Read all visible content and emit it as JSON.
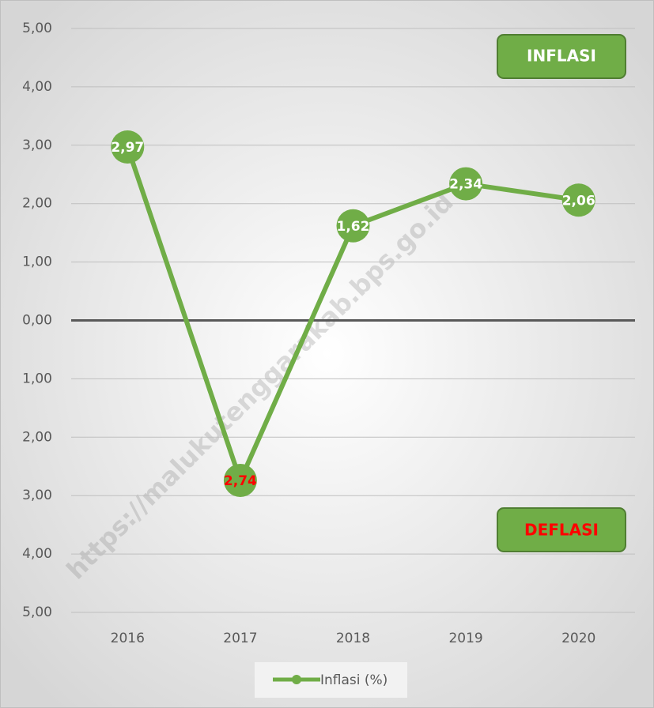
{
  "chart_data": {
    "type": "line",
    "categories": [
      "2016",
      "2017",
      "2018",
      "2019",
      "2020"
    ],
    "series": [
      {
        "name": "Inflasi (%)",
        "color": "#70ad47",
        "values": [
          2.97,
          -2.74,
          1.62,
          2.34,
          2.06
        ],
        "value_labels": [
          "2,97",
          "2,74",
          "1,62",
          "2,34",
          "2,06"
        ],
        "value_label_colors": [
          "#ffffff",
          "#ff0000",
          "#ffffff",
          "#ffffff",
          "#ffffff"
        ]
      }
    ],
    "ylim": [
      -5,
      5
    ],
    "yticks": [
      {
        "value": 5,
        "label": "5,00"
      },
      {
        "value": 4,
        "label": "4,00"
      },
      {
        "value": 3,
        "label": "3,00"
      },
      {
        "value": 2,
        "label": "2,00"
      },
      {
        "value": 1,
        "label": "1,00"
      },
      {
        "value": 0,
        "label": "0,00"
      },
      {
        "value": -1,
        "label": "1,00"
      },
      {
        "value": -2,
        "label": "2,00"
      },
      {
        "value": -3,
        "label": "3,00"
      },
      {
        "value": -4,
        "label": "4,00"
      },
      {
        "value": -5,
        "label": "5,00"
      }
    ],
    "grid": true,
    "legend": "bottom",
    "annotations": [
      {
        "text": "INFLASI",
        "color": "#ffffff"
      },
      {
        "text": "DEFLASI",
        "color": "#ff0000"
      }
    ],
    "watermark": "https://malukutenggarakab.bps.go.id"
  }
}
